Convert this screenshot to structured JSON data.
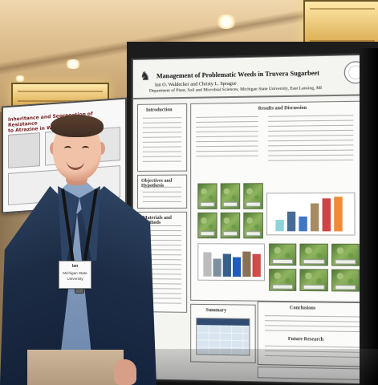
{
  "scene": {
    "left_poster": {
      "title_lines": [
        "Inheritance and Segregation of Resistance",
        "to Atrazine in Waterhemp"
      ]
    },
    "main_poster": {
      "title": "Management of Problematic Weeds in Truvera Sugarbeet",
      "authors": "Ian O. Waldecker and Christy L. Sprague",
      "department": "Department of Plant, Soil and Microbial Sciences, Michigan State University, East Lansing, MI",
      "section_headers": {
        "results": "Results and Discussion",
        "introduction": "Introduction",
        "objectives": "Objectives and Hypothesis",
        "materials": "Materials and Methods",
        "summary": "Summary",
        "conclusions": "Conclusions",
        "future": "Future Research"
      }
    },
    "name_badge": {
      "line1": "Ian",
      "line2": "Michigan State",
      "line3": "University"
    }
  }
}
